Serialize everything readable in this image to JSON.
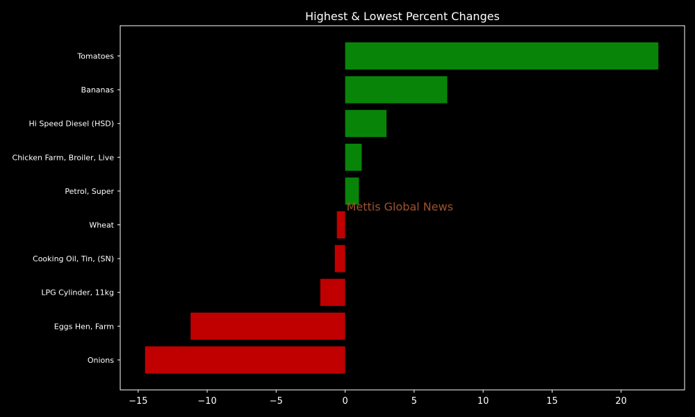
{
  "chart_data": {
    "type": "bar",
    "orientation": "horizontal",
    "title": "Highest & Lowest Percent Changes",
    "categories": [
      "Tomatoes",
      "Bananas",
      "Hi Speed Diesel (HSD)",
      "Chicken Farm, Broiler, Live",
      "Petrol, Super",
      "Wheat",
      "Cooking Oil, Tin, (SN)",
      "LPG Cylinder, 11kg",
      "Eggs Hen, Farm",
      "Onions"
    ],
    "values": [
      22.7,
      7.4,
      3.0,
      1.2,
      1.0,
      -0.6,
      -0.75,
      -1.8,
      -11.2,
      -14.5
    ],
    "xlim": [
      -16.3,
      24.6
    ],
    "x_ticks": [
      -15,
      -10,
      -5,
      0,
      5,
      10,
      15,
      20
    ],
    "x_tick_labels": [
      "−15",
      "−10",
      "−5",
      "0",
      "5",
      "10",
      "15",
      "20"
    ],
    "positive_color": "#088508",
    "negative_color": "#c00000",
    "background_color": "#000000",
    "axis_color": "#ffffff",
    "grid": false,
    "annotation": {
      "text": "Mettis Global News",
      "x": 0.1,
      "category_index": 4.45,
      "color": "#a0522d"
    }
  }
}
